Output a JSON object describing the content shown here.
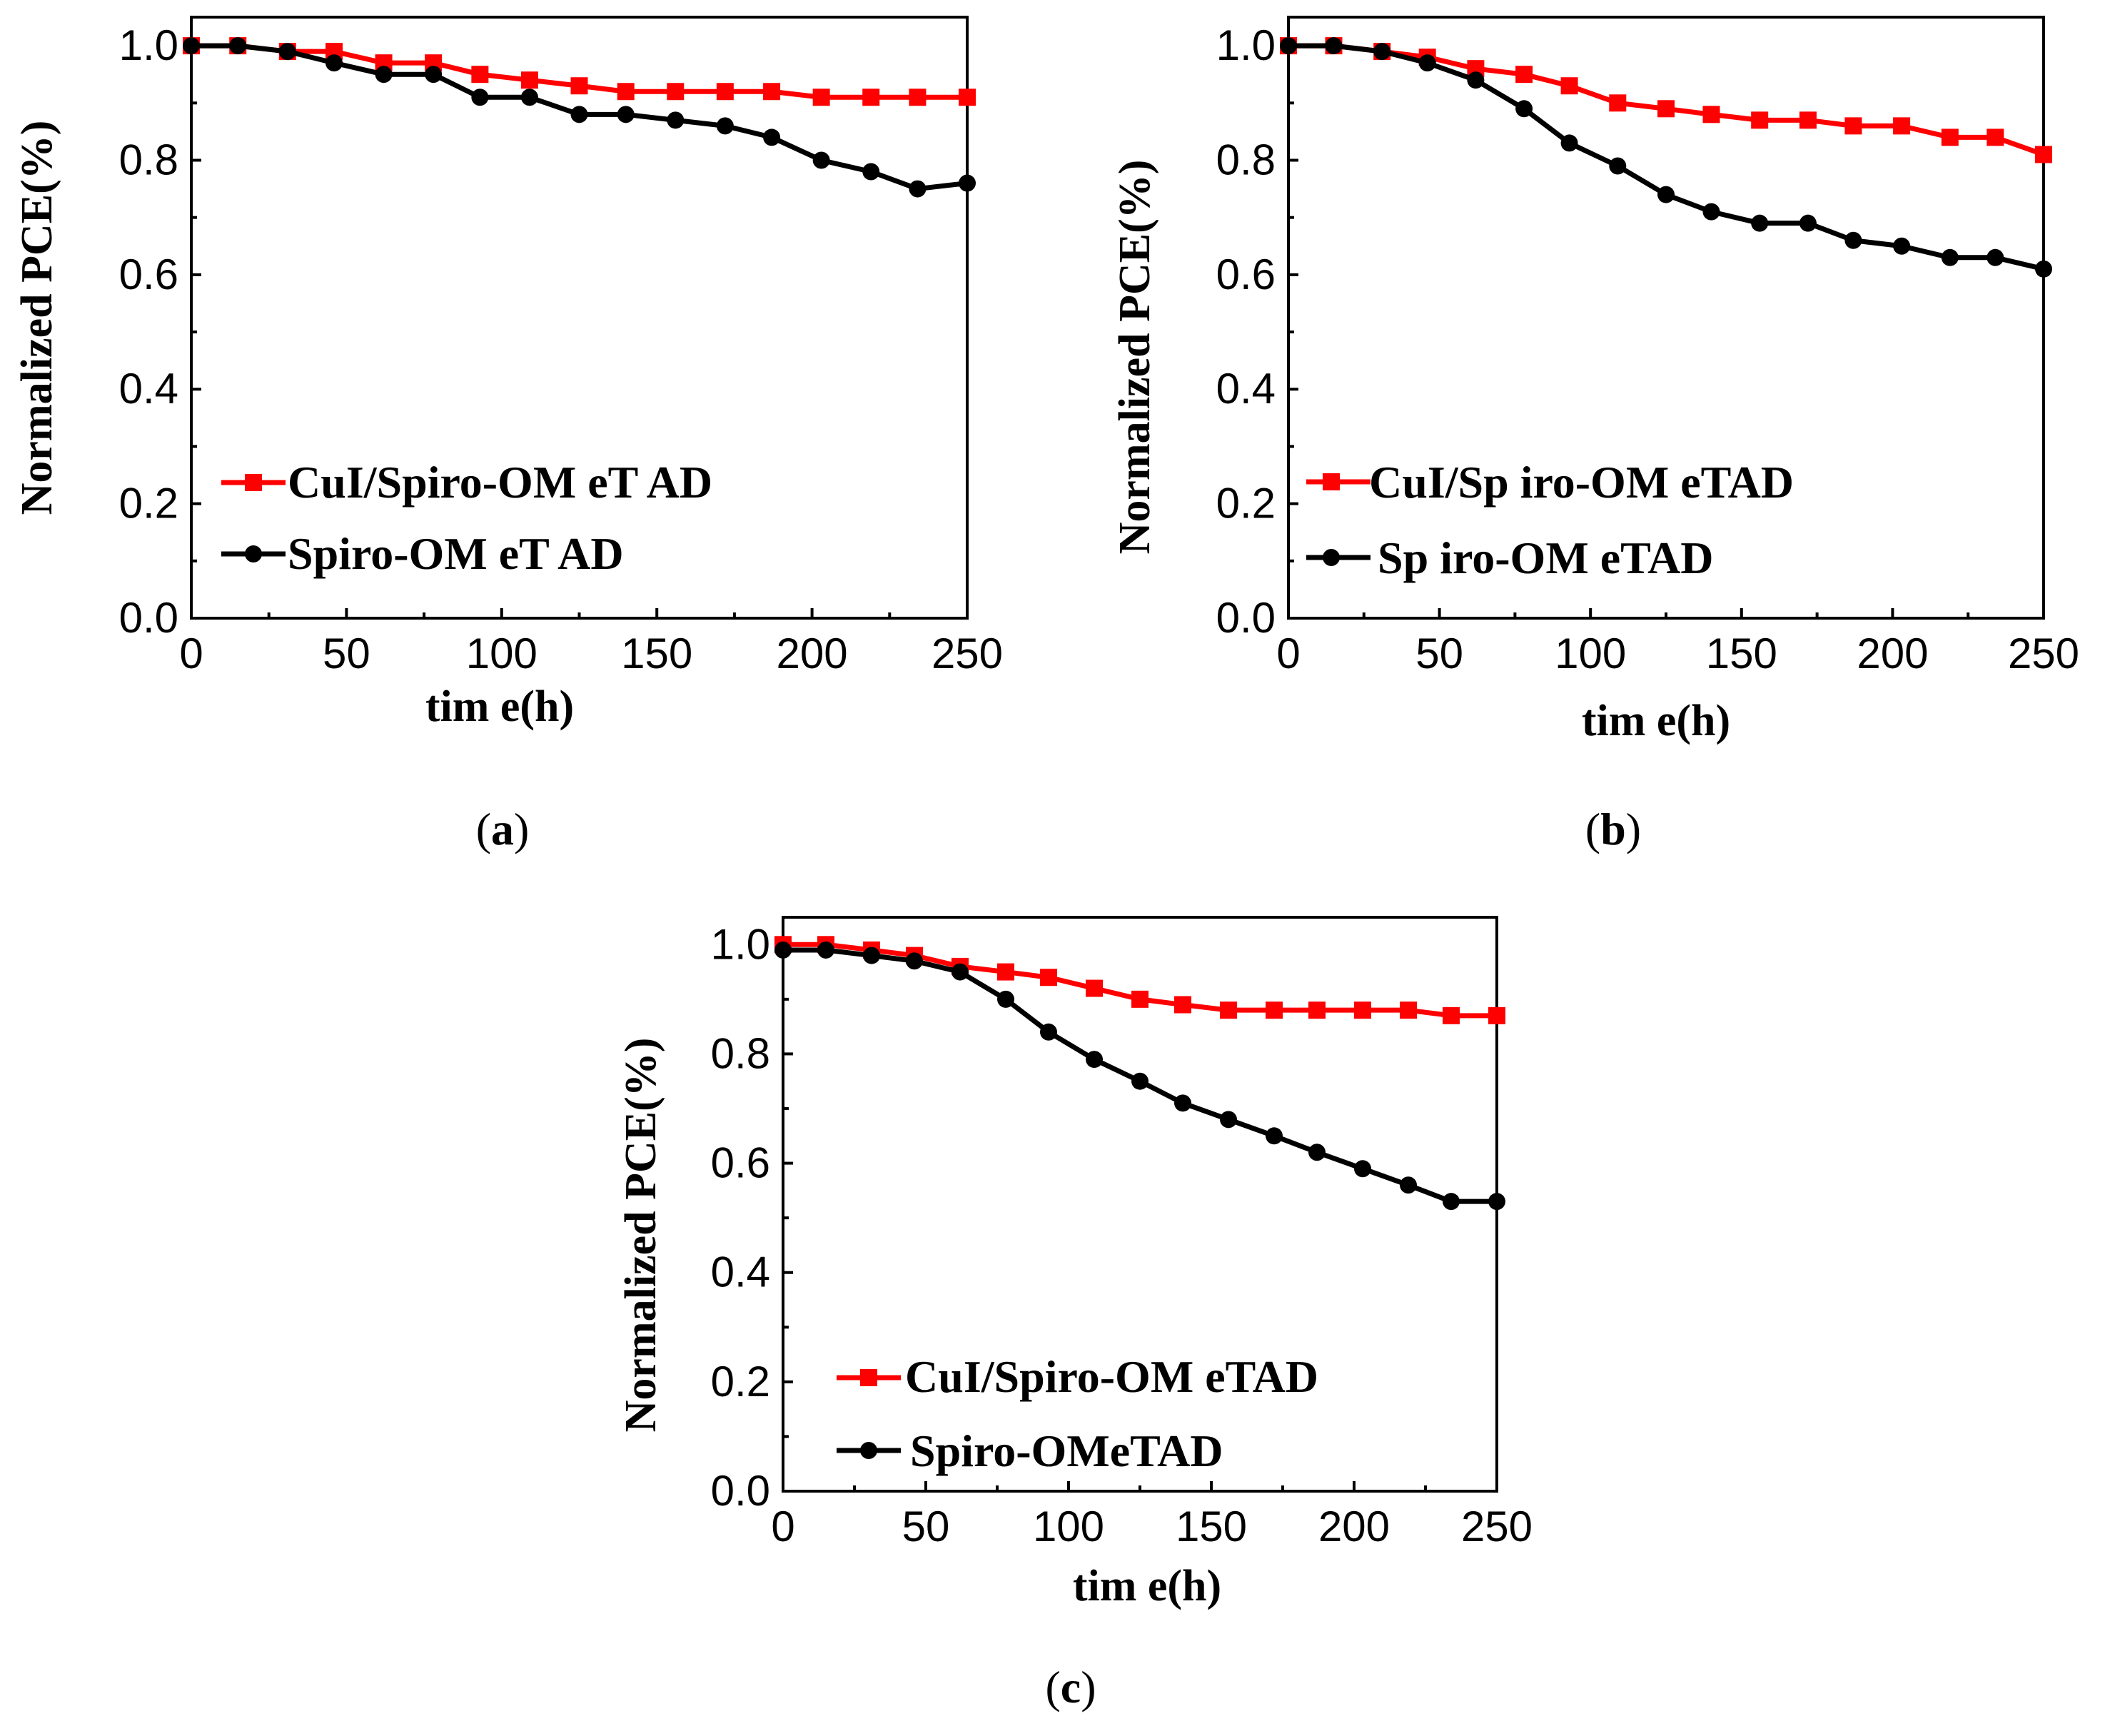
{
  "chart_data": [
    {
      "type": "line",
      "panel": "a",
      "caption_open": "(",
      "caption_letter": "a",
      "caption_close": ")",
      "xlabel": "tim e(h)",
      "ylabel": "Normalized PCE(%)",
      "xlim": [
        0,
        250
      ],
      "ylim": [
        0,
        1.05
      ],
      "xticks": [
        "0",
        "50",
        "100",
        "150",
        "200",
        "250"
      ],
      "yticks": [
        "0.0",
        "0.2",
        "0.4",
        "0.6",
        "0.8",
        "1.0"
      ],
      "legend_position": "lower-left",
      "series": [
        {
          "name": "CuI/Spiro-OM eT AD",
          "color": "#ff0000",
          "marker": "square",
          "x": [
            0,
            15,
            31,
            46,
            62,
            78,
            93,
            109,
            125,
            140,
            156,
            172,
            187,
            203,
            219,
            234,
            250
          ],
          "y": [
            1.0,
            1.0,
            0.99,
            0.99,
            0.97,
            0.97,
            0.95,
            0.94,
            0.93,
            0.92,
            0.92,
            0.92,
            0.92,
            0.91,
            0.91,
            0.91,
            0.91
          ]
        },
        {
          "name": "Spiro-OM eT AD",
          "color": "#000000",
          "marker": "circle",
          "x": [
            0,
            15,
            31,
            46,
            62,
            78,
            93,
            109,
            125,
            140,
            156,
            172,
            187,
            203,
            219,
            234,
            250
          ],
          "y": [
            1.0,
            1.0,
            0.99,
            0.97,
            0.95,
            0.95,
            0.91,
            0.91,
            0.88,
            0.88,
            0.87,
            0.86,
            0.84,
            0.8,
            0.78,
            0.75,
            0.76
          ]
        }
      ]
    },
    {
      "type": "line",
      "panel": "b",
      "caption_open": "(",
      "caption_letter": "b",
      "caption_close": ")",
      "xlabel": "tim e(h)",
      "ylabel": "Normalized PCE(%)",
      "xlim": [
        0,
        250
      ],
      "ylim": [
        0,
        1.05
      ],
      "xticks": [
        "0",
        "50",
        "100",
        "150",
        "200",
        "250"
      ],
      "yticks": [
        "0.0",
        "0.2",
        "0.4",
        "0.6",
        "0.8",
        "1.0"
      ],
      "legend_position": "lower-left",
      "series": [
        {
          "name": "CuI/Sp iro-OM eTAD",
          "color": "#ff0000",
          "marker": "square",
          "x": [
            0,
            15,
            31,
            46,
            62,
            78,
            93,
            109,
            125,
            140,
            156,
            172,
            187,
            203,
            219,
            234,
            250
          ],
          "y": [
            1.0,
            1.0,
            0.99,
            0.98,
            0.96,
            0.95,
            0.93,
            0.9,
            0.89,
            0.88,
            0.87,
            0.87,
            0.86,
            0.86,
            0.84,
            0.84,
            0.81
          ]
        },
        {
          "name": "Sp iro-OM eTAD",
          "color": "#000000",
          "marker": "circle",
          "x": [
            0,
            15,
            31,
            46,
            62,
            78,
            93,
            109,
            125,
            140,
            156,
            172,
            187,
            203,
            219,
            234,
            250
          ],
          "y": [
            1.0,
            1.0,
            0.99,
            0.97,
            0.94,
            0.89,
            0.83,
            0.79,
            0.74,
            0.71,
            0.69,
            0.69,
            0.66,
            0.65,
            0.63,
            0.63,
            0.61
          ]
        }
      ]
    },
    {
      "type": "line",
      "panel": "c",
      "caption_open": "(",
      "caption_letter": "c",
      "caption_close": ")",
      "xlabel": "tim e(h)",
      "ylabel": "Normalized PCE(%)",
      "xlim": [
        0,
        250
      ],
      "ylim": [
        0,
        1.05
      ],
      "xticks": [
        "0",
        "50",
        "100",
        "150",
        "200",
        "250"
      ],
      "yticks": [
        "0.0",
        "0.2",
        "0.4",
        "0.6",
        "0.8",
        "1.0"
      ],
      "legend_position": "lower-left",
      "series": [
        {
          "name": "CuI/Spiro-OM eTAD",
          "color": "#ff0000",
          "marker": "square",
          "x": [
            0,
            15,
            31,
            46,
            62,
            78,
            93,
            109,
            125,
            140,
            156,
            172,
            187,
            203,
            219,
            234,
            250
          ],
          "y": [
            1.0,
            1.0,
            0.99,
            0.98,
            0.96,
            0.95,
            0.94,
            0.92,
            0.9,
            0.89,
            0.88,
            0.88,
            0.88,
            0.88,
            0.88,
            0.87,
            0.87
          ]
        },
        {
          "name": "Spiro-OMeTAD",
          "color": "#000000",
          "marker": "circle",
          "x": [
            0,
            15,
            31,
            46,
            62,
            78,
            93,
            109,
            125,
            140,
            156,
            172,
            187,
            203,
            219,
            234,
            250
          ],
          "y": [
            0.99,
            0.99,
            0.98,
            0.97,
            0.95,
            0.9,
            0.84,
            0.79,
            0.75,
            0.71,
            0.68,
            0.65,
            0.62,
            0.59,
            0.56,
            0.53,
            0.53
          ]
        }
      ]
    }
  ]
}
